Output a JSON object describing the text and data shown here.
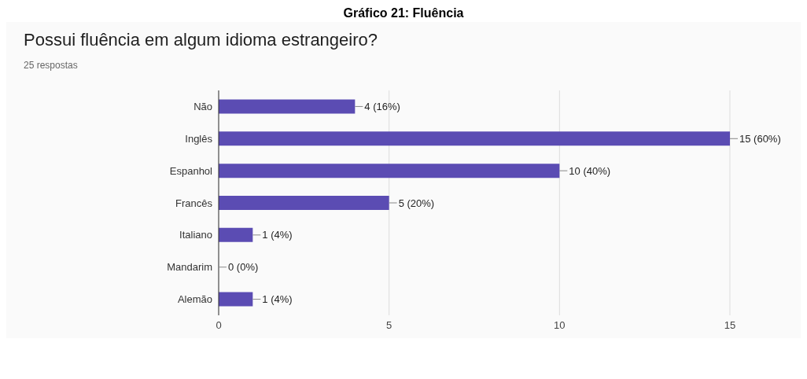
{
  "chart_data": {
    "type": "bar",
    "orientation": "horizontal",
    "title": "Possui fluência em algum idioma estrangeiro?",
    "subtitle": "25 respostas",
    "annotations": [
      "Gráfico 21: Fluência"
    ],
    "categories": [
      "Não",
      "Inglês",
      "Espanhol",
      "Francês",
      "Italiano",
      "Mandarim",
      "Alemão"
    ],
    "values": [
      4,
      15,
      10,
      5,
      1,
      0,
      1
    ],
    "value_labels": [
      "4 (16%)",
      "15 (60%)",
      "10 (40%)",
      "5 (20%)",
      "1 (4%)",
      "0 (0%)",
      "1 (4%)"
    ],
    "color": "#5b4cb3",
    "xlim": [
      0,
      15
    ],
    "xticks": [
      0,
      5,
      10,
      15
    ],
    "grid": "x"
  }
}
